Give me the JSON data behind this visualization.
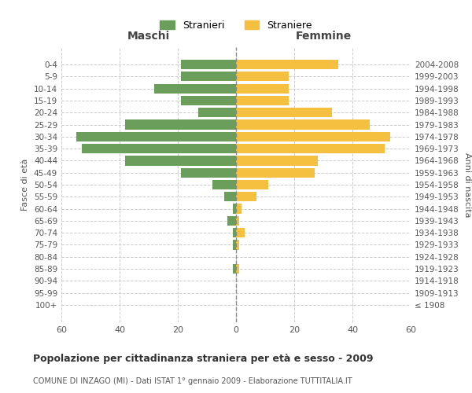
{
  "age_groups": [
    "100+",
    "95-99",
    "90-94",
    "85-89",
    "80-84",
    "75-79",
    "70-74",
    "65-69",
    "60-64",
    "55-59",
    "50-54",
    "45-49",
    "40-44",
    "35-39",
    "30-34",
    "25-29",
    "20-24",
    "15-19",
    "10-14",
    "5-9",
    "0-4"
  ],
  "birth_years": [
    "≤ 1908",
    "1909-1913",
    "1914-1918",
    "1919-1923",
    "1924-1928",
    "1929-1933",
    "1934-1938",
    "1939-1943",
    "1944-1948",
    "1949-1953",
    "1954-1958",
    "1959-1963",
    "1964-1968",
    "1969-1973",
    "1974-1978",
    "1979-1983",
    "1984-1988",
    "1989-1993",
    "1994-1998",
    "1999-2003",
    "2004-2008"
  ],
  "males": [
    0,
    0,
    0,
    1,
    0,
    1,
    1,
    3,
    1,
    4,
    8,
    19,
    38,
    53,
    55,
    38,
    13,
    19,
    28,
    19,
    19
  ],
  "females": [
    0,
    0,
    0,
    1,
    0,
    1,
    3,
    1,
    2,
    7,
    11,
    27,
    28,
    51,
    53,
    46,
    33,
    18,
    18,
    18,
    35
  ],
  "male_color": "#6a9e5a",
  "female_color": "#f5bf40",
  "background_color": "#ffffff",
  "grid_color": "#cccccc",
  "title": "Popolazione per cittadinanza straniera per età e sesso - 2009",
  "subtitle": "COMUNE DI INZAGO (MI) - Dati ISTAT 1° gennaio 2009 - Elaborazione TUTTITALIA.IT",
  "xlabel_left": "Maschi",
  "xlabel_right": "Femmine",
  "ylabel_left": "Fasce di età",
  "ylabel_right": "Anni di nascita",
  "legend_male": "Stranieri",
  "legend_female": "Straniere",
  "xlim": 60,
  "bar_height": 0.8
}
